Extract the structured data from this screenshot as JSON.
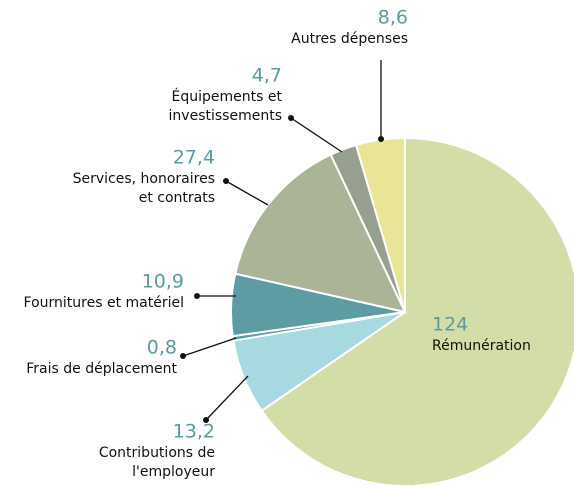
{
  "chart_data": {
    "type": "pie",
    "categories": [
      [
        "Rémunération"
      ],
      [
        "Contributions de",
        "l'employeur"
      ],
      [
        "Frais de déplacement"
      ],
      [
        "Fournitures et matériel"
      ],
      [
        "Services, honoraires",
        "et contrats"
      ],
      [
        "Équipements et",
        "investissements"
      ],
      [
        "Autres dépenses"
      ]
    ],
    "values": [
      124,
      13.2,
      0.8,
      10.9,
      27.4,
      4.7,
      8.6
    ],
    "value_labels": [
      "124",
      "13,2",
      "0,8",
      "10,9",
      "27,4",
      "4,7",
      "8,6"
    ],
    "colors": [
      "#d3dda8",
      "#a6d9e0",
      "#5d9ca2",
      "#5d9ca2",
      "#a9b596",
      "#979f8e",
      "#e8e595"
    ]
  }
}
